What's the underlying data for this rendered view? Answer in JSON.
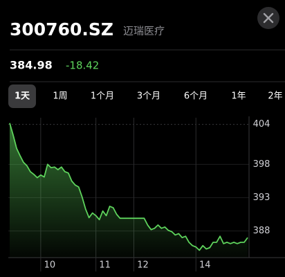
{
  "header": {
    "symbol": "300760.SZ",
    "name": "迈瑞医疗",
    "price": "384.98",
    "change": "-18.42"
  },
  "tabs": [
    "1天",
    "1周",
    "1个月",
    "3个月",
    "6个月",
    "1年",
    "2年"
  ],
  "selected_tab": 0,
  "chart_data": {
    "type": "line",
    "color": "#5ed35c",
    "grid": true,
    "values": [
      404.2,
      402.4,
      400.4,
      399.3,
      398.3,
      397.8,
      396.9,
      396.5,
      396.0,
      396.4,
      396.1,
      398.0,
      397.5,
      397.6,
      397.2,
      397.6,
      396.9,
      396.7,
      395.5,
      394.9,
      394.6,
      393.1,
      391.3,
      390.0,
      390.7,
      390.3,
      389.7,
      391.0,
      390.3,
      391.7,
      391.5,
      390.5,
      389.9,
      389.9,
      389.9,
      389.9,
      389.9,
      389.9,
      389.9,
      389.9,
      388.9,
      388.2,
      388.4,
      388.9,
      388.4,
      388.6,
      388.1,
      387.9,
      387.4,
      387.6,
      387.0,
      387.2,
      386.3,
      385.8,
      385.6,
      385.1,
      385.8,
      385.3,
      385.5,
      386.3,
      386.3,
      387.2,
      386.1,
      386.3,
      386.1,
      386.3,
      386.1,
      386.3,
      386.3,
      387.0
    ],
    "xlim": [
      0,
      69
    ],
    "xticks": [
      {
        "value": 9,
        "label": "10"
      },
      {
        "value": 25,
        "label": "11"
      },
      {
        "value": 36,
        "label": "12"
      },
      {
        "value": 54,
        "label": "14"
      }
    ],
    "ylim": [
      384,
      405
    ],
    "yticks": [
      404,
      398,
      393,
      388
    ]
  }
}
